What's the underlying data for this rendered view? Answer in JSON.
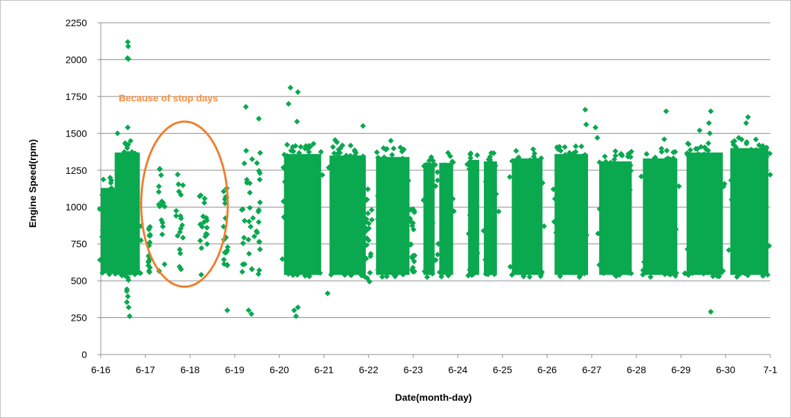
{
  "chart_data": {
    "type": "scatter",
    "title": "",
    "xlabel": "Date(month-day)",
    "ylabel": "Engine Speed(rpm)",
    "x_tick_labels": [
      "6-16",
      "6-17",
      "6-18",
      "6-19",
      "6-20",
      "6-21",
      "6-22",
      "6-23",
      "6-24",
      "6-25",
      "6-26",
      "6-27",
      "6-28",
      "6-29",
      "6-30",
      "7-1"
    ],
    "y_tick_labels": [
      "0",
      "250",
      "500",
      "750",
      "1000",
      "1250",
      "1500",
      "1750",
      "2000",
      "2250"
    ],
    "xlim": [
      "6-16",
      "7-1"
    ],
    "ylim": [
      0,
      2250
    ],
    "grid": "horizontal",
    "legend": "none",
    "marker": "diamond",
    "series_color": "#0aa84f",
    "annotation": {
      "text": "Because of stop days",
      "color": "#f07d2a",
      "ellipse_center": {
        "x": "6-17 21:00",
        "y": 1020
      },
      "ellipse_radius": {
        "days": 0.97,
        "rpm": 560
      }
    },
    "dense_bands": [
      {
        "start": "6-16 00:00",
        "end": "6-16 08:00",
        "rpm_low": 550,
        "rpm_high": 1130
      },
      {
        "start": "6-16 07:30",
        "end": "6-16 21:00",
        "rpm_low": 540,
        "rpm_high": 1370
      },
      {
        "start": "6-20 02:30",
        "end": "6-20 22:30",
        "rpm_low": 540,
        "rpm_high": 1360
      },
      {
        "start": "6-21 03:00",
        "end": "6-21 22:30",
        "rpm_low": 540,
        "rpm_high": 1350
      },
      {
        "start": "6-22 04:00",
        "end": "6-22 22:00",
        "rpm_low": 540,
        "rpm_high": 1340
      },
      {
        "start": "6-23 05:30",
        "end": "6-23 11:30",
        "rpm_low": 540,
        "rpm_high": 1300
      },
      {
        "start": "6-23 14:00",
        "end": "6-23 21:30",
        "rpm_low": 540,
        "rpm_high": 1300
      },
      {
        "start": "6-24 05:30",
        "end": "6-24 11:30",
        "rpm_low": 540,
        "rpm_high": 1320
      },
      {
        "start": "6-24 14:00",
        "end": "6-24 21:00",
        "rpm_low": 540,
        "rpm_high": 1310
      },
      {
        "start": "6-25 05:00",
        "end": "6-25 21:30",
        "rpm_low": 540,
        "rpm_high": 1330
      },
      {
        "start": "6-26 04:00",
        "end": "6-26 22:00",
        "rpm_low": 540,
        "rpm_high": 1360
      },
      {
        "start": "6-27 04:00",
        "end": "6-27 21:30",
        "rpm_low": 540,
        "rpm_high": 1310
      },
      {
        "start": "6-28 03:30",
        "end": "6-28 22:00",
        "rpm_low": 540,
        "rpm_high": 1330
      },
      {
        "start": "6-29 03:00",
        "end": "6-29 22:30",
        "rpm_low": 540,
        "rpm_high": 1370
      },
      {
        "start": "6-30 02:30",
        "end": "6-30 23:00",
        "rpm_low": 540,
        "rpm_high": 1400
      }
    ],
    "sparse_bands": [
      {
        "start": "6-16 14:00",
        "end": "6-16 17:00",
        "rpm_low": 300,
        "rpm_high": 1550
      },
      {
        "start": "6-17 01:00",
        "end": "6-17 02:30",
        "rpm_low": 540,
        "rpm_high": 880
      },
      {
        "start": "6-17 07:00",
        "end": "6-17 10:30",
        "rpm_low": 540,
        "rpm_high": 1280
      },
      {
        "start": "6-17 16:30",
        "end": "6-17 20:30",
        "rpm_low": 540,
        "rpm_high": 1260
      },
      {
        "start": "6-18 05:00",
        "end": "6-18 09:30",
        "rpm_low": 540,
        "rpm_high": 1170
      },
      {
        "start": "6-18 18:00",
        "end": "6-18 21:00",
        "rpm_low": 560,
        "rpm_high": 1150
      },
      {
        "start": "6-19 03:30",
        "end": "6-19 14:00",
        "rpm_low": 500,
        "rpm_high": 1420
      },
      {
        "start": "6-21 22:00",
        "end": "6-22 02:00",
        "rpm_low": 490,
        "rpm_high": 1100
      },
      {
        "start": "6-22 22:00",
        "end": "6-23 01:00",
        "rpm_low": 560,
        "rpm_high": 1000
      }
    ],
    "outliers": [
      {
        "x": "6-16 14:30",
        "y": 2120
      },
      {
        "x": "6-16 14:45",
        "y": 2090
      },
      {
        "x": "6-16 14:20",
        "y": 2010
      },
      {
        "x": "6-16 14:50",
        "y": 2005
      },
      {
        "x": "6-16 14:30",
        "y": 1540
      },
      {
        "x": "6-16 09:00",
        "y": 1500
      },
      {
        "x": "6-16 14:00",
        "y": 430
      },
      {
        "x": "6-16 15:00",
        "y": 320
      },
      {
        "x": "6-16 15:30",
        "y": 260
      },
      {
        "x": "6-18 20:00",
        "y": 300
      },
      {
        "x": "6-19 06:00",
        "y": 1680
      },
      {
        "x": "6-19 13:00",
        "y": 1600
      },
      {
        "x": "6-19 07:30",
        "y": 300
      },
      {
        "x": "6-19 09:00",
        "y": 275
      },
      {
        "x": "6-20 06:00",
        "y": 1810
      },
      {
        "x": "6-20 10:00",
        "y": 1780
      },
      {
        "x": "6-20 05:00",
        "y": 1700
      },
      {
        "x": "6-20 09:30",
        "y": 1580
      },
      {
        "x": "6-20 10:00",
        "y": 320
      },
      {
        "x": "6-20 08:00",
        "y": 300
      },
      {
        "x": "6-20 09:00",
        "y": 260
      },
      {
        "x": "6-21 02:00",
        "y": 415
      },
      {
        "x": "6-21 06:00",
        "y": 1455
      },
      {
        "x": "6-21 07:00",
        "y": 1440
      },
      {
        "x": "6-21 21:00",
        "y": 1550
      },
      {
        "x": "6-22 12:00",
        "y": 1450
      },
      {
        "x": "6-26 20:30",
        "y": 1660
      },
      {
        "x": "6-26 21:00",
        "y": 1560
      },
      {
        "x": "6-27 02:00",
        "y": 1540
      },
      {
        "x": "6-27 03:00",
        "y": 1470
      },
      {
        "x": "6-28 16:00",
        "y": 1650
      },
      {
        "x": "6-28 15:00",
        "y": 1460
      },
      {
        "x": "6-29 10:00",
        "y": 1520
      },
      {
        "x": "6-29 16:00",
        "y": 1650
      },
      {
        "x": "6-29 15:00",
        "y": 1570
      },
      {
        "x": "6-29 15:30",
        "y": 1500
      },
      {
        "x": "6-29 16:00",
        "y": 290
      },
      {
        "x": "6-30 12:00",
        "y": 1610
      },
      {
        "x": "6-30 11:00",
        "y": 1570
      },
      {
        "x": "6-30 07:00",
        "y": 1470
      },
      {
        "x": "6-30 18:00",
        "y": 1420
      },
      {
        "x": "6-30 22:00",
        "y": 1340
      }
    ]
  }
}
